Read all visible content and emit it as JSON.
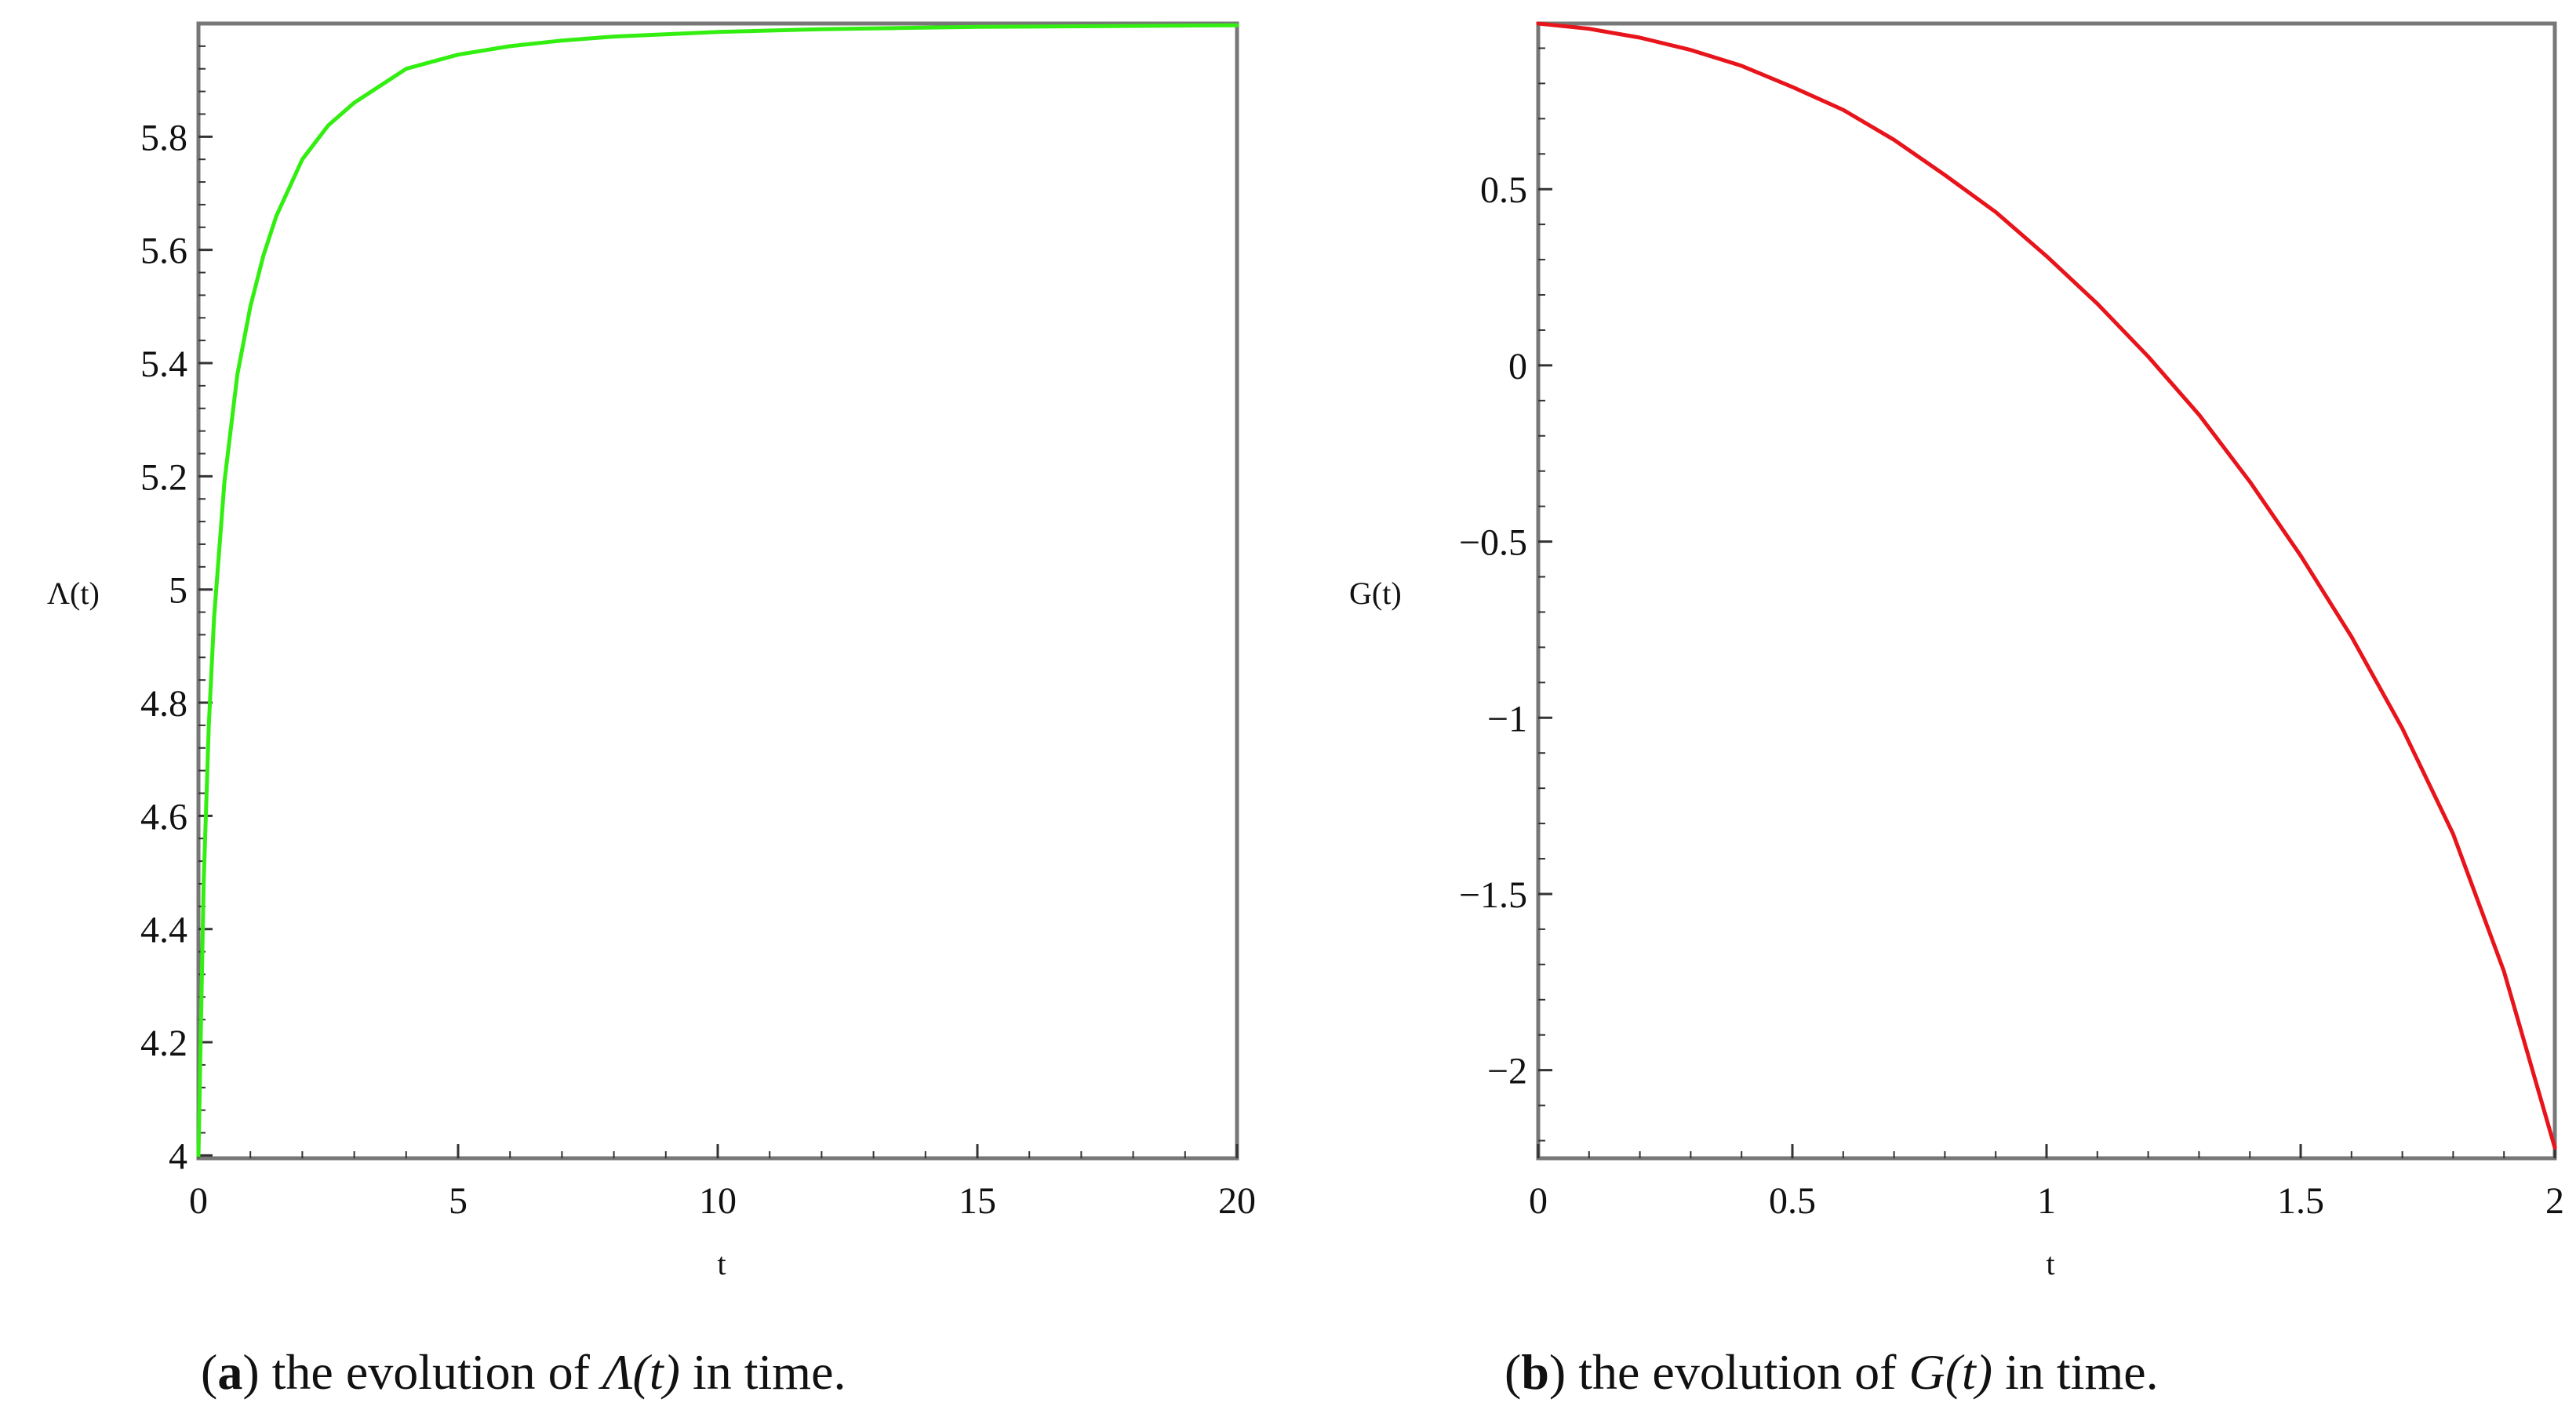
{
  "colors": {
    "panel_a_line": "#33ee11",
    "panel_b_line": "#e8141b",
    "frame": "#777777"
  },
  "chart_data": [
    {
      "type": "line",
      "id": "a",
      "xlabel": "t",
      "ylabel": "Λ(t)",
      "xlim": [
        0,
        20
      ],
      "ylim": [
        3.995,
        6.0
      ],
      "xticks": [
        0,
        5,
        10,
        15,
        20
      ],
      "xtick_labels": [
        "0",
        "5",
        "10",
        "15",
        "20"
      ],
      "yticks": [
        4,
        4.2,
        4.4,
        4.6,
        4.8,
        5,
        5.2,
        5.4,
        5.6,
        5.8
      ],
      "ytick_labels": [
        "4",
        "4.2",
        "4.4",
        "4.6",
        "4.8",
        "5",
        "5.2",
        "5.4",
        "5.6",
        "5.8"
      ],
      "grid": false,
      "series": [
        {
          "color": "#33ee11",
          "x": [
            0,
            0.1,
            0.2,
            0.3,
            0.5,
            0.75,
            1.0,
            1.25,
            1.5,
            2.0,
            2.5,
            3.0,
            3.5,
            4.0,
            5.0,
            6.0,
            7.0,
            8.0,
            10.0,
            12.0,
            15.0,
            20.0
          ],
          "y": [
            4.0,
            4.48,
            4.76,
            4.95,
            5.19,
            5.38,
            5.5,
            5.59,
            5.66,
            5.76,
            5.82,
            5.86,
            5.89,
            5.92,
            5.945,
            5.96,
            5.97,
            5.977,
            5.985,
            5.99,
            5.994,
            5.997
          ]
        }
      ],
      "caption": {
        "label": "a",
        "prefix": "the evolution of",
        "math": "Λ(t)",
        "suffix": "in time."
      }
    },
    {
      "type": "line",
      "id": "b",
      "xlabel": "t",
      "ylabel": "G(t)",
      "xlim": [
        0,
        2
      ],
      "ylim": [
        -2.25,
        0.97
      ],
      "xticks": [
        0,
        0.5,
        1,
        1.5,
        2
      ],
      "xtick_labels": [
        "0",
        "0.5",
        "1",
        "1.5",
        "2"
      ],
      "yticks": [
        -2,
        -1.5,
        -1,
        -0.5,
        0,
        0.5
      ],
      "ytick_labels": [
        "−2",
        "−1.5",
        "−1",
        "−0.5",
        "0",
        "0.5"
      ],
      "grid": false,
      "series": [
        {
          "color": "#e8141b",
          "x": [
            0,
            0.1,
            0.2,
            0.3,
            0.4,
            0.5,
            0.6,
            0.7,
            0.8,
            0.9,
            1.0,
            1.1,
            1.2,
            1.3,
            1.4,
            1.5,
            1.6,
            1.7,
            1.8,
            1.9,
            2.0
          ],
          "y": [
            0.97,
            0.955,
            0.93,
            0.895,
            0.85,
            0.79,
            0.725,
            0.64,
            0.54,
            0.435,
            0.31,
            0.175,
            0.025,
            -0.14,
            -0.33,
            -0.54,
            -0.77,
            -1.03,
            -1.33,
            -1.72,
            -2.22
          ]
        }
      ],
      "caption": {
        "label": "b",
        "prefix": "the evolution of",
        "math": "G(t)",
        "suffix": "in time."
      }
    }
  ]
}
